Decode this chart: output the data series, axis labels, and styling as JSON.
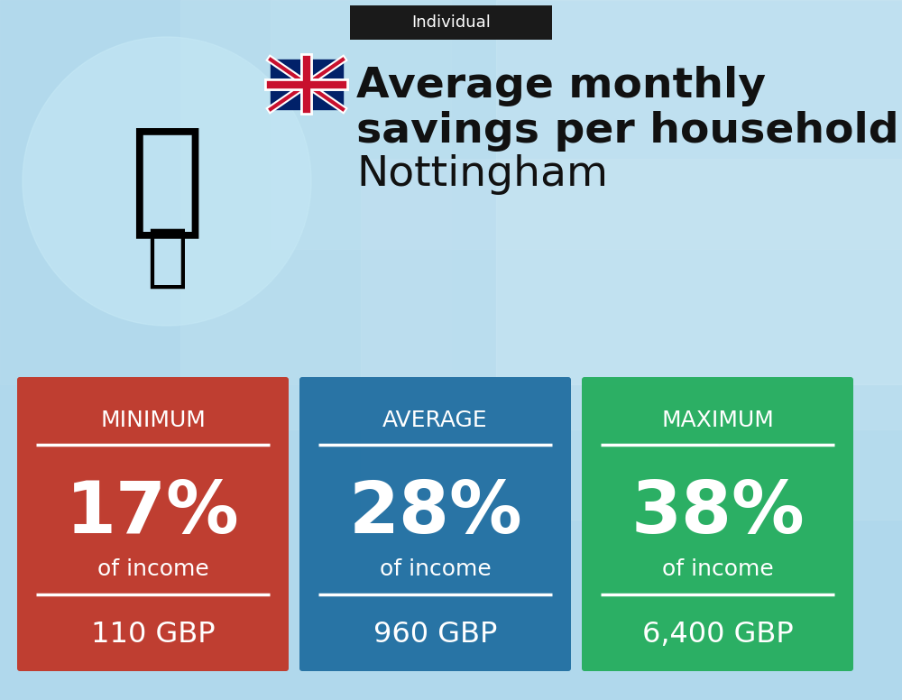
{
  "title_line1": "Average monthly",
  "title_line2": "savings per household in",
  "title_line3": "Nottingham",
  "tab_label": "Individual",
  "cards": [
    {
      "label": "MINIMUM",
      "percent": "17%",
      "sub": "of income",
      "amount": "110 GBP",
      "color": "#c0392b"
    },
    {
      "label": "AVERAGE",
      "percent": "28%",
      "sub": "of income",
      "amount": "960 GBP",
      "color": "#2471a3"
    },
    {
      "label": "MAXIMUM",
      "percent": "38%",
      "sub": "of income",
      "amount": "6,400 GBP",
      "color": "#27ae60"
    }
  ],
  "tab_bg": "#1a1a1a",
  "tab_fg": "#ffffff",
  "card_text_color": "#ffffff",
  "title_bold_color": "#111111",
  "bg_color": "#a8d8ea"
}
